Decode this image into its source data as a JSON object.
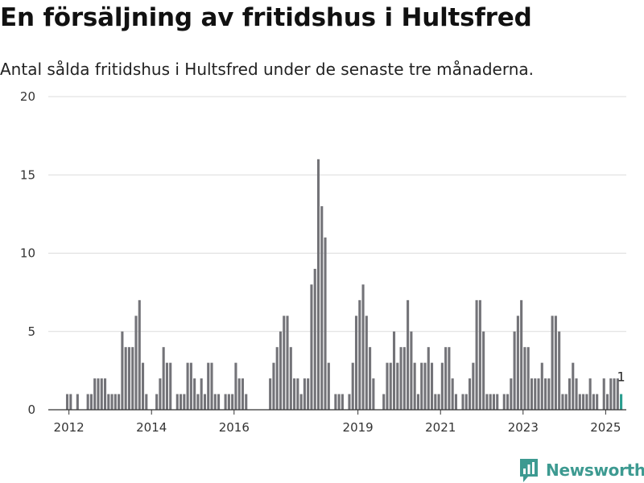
{
  "header": {
    "title": "En försäljning av fritidshus i Hultsfred",
    "subtitle": "Antal sålda fritidshus i Hultsfred under de senaste tre månaderna."
  },
  "brand": {
    "name": "Newsworthy",
    "logo_icon": "newsworthy-logo-icon",
    "color": "#3d9a91"
  },
  "chart_data": {
    "type": "bar",
    "title": "En försäljning av fritidshus i Hultsfred",
    "subtitle": "Antal sålda fritidshus i Hultsfred under de senaste tre månaderna.",
    "xlabel": "",
    "ylabel": "",
    "ylim": [
      0,
      20
    ],
    "y_ticks": [
      0,
      5,
      10,
      15,
      20
    ],
    "x_ticks": [
      "2012",
      "2014",
      "2016",
      "2019",
      "2021",
      "2023",
      "2025"
    ],
    "x_range": [
      "2011-07",
      "2025-07"
    ],
    "grid": true,
    "bar_color": "#737378",
    "highlight_color": "#2a9d8f",
    "highlight_label": "1",
    "start_month": "2011-12",
    "values": [
      1,
      1,
      0,
      1,
      0,
      0,
      1,
      1,
      2,
      2,
      2,
      2,
      1,
      1,
      1,
      1,
      5,
      4,
      4,
      4,
      6,
      7,
      3,
      1,
      0,
      0,
      1,
      2,
      4,
      3,
      3,
      0,
      1,
      1,
      1,
      3,
      3,
      2,
      1,
      2,
      1,
      3,
      3,
      1,
      1,
      0,
      1,
      1,
      1,
      3,
      2,
      2,
      1,
      0,
      0,
      0,
      0,
      0,
      0,
      2,
      3,
      4,
      5,
      6,
      6,
      4,
      2,
      2,
      1,
      2,
      2,
      8,
      9,
      16,
      13,
      11,
      3,
      0,
      1,
      1,
      1,
      0,
      1,
      3,
      6,
      7,
      8,
      6,
      4,
      2,
      0,
      0,
      1,
      3,
      3,
      5,
      3,
      4,
      4,
      7,
      5,
      3,
      1,
      3,
      3,
      4,
      3,
      1,
      1,
      3,
      4,
      4,
      2,
      1,
      0,
      1,
      1,
      2,
      3,
      7,
      7,
      5,
      1,
      1,
      1,
      1,
      0,
      1,
      1,
      2,
      5,
      6,
      7,
      4,
      4,
      2,
      2,
      2,
      3,
      2,
      2,
      6,
      6,
      5,
      1,
      1,
      2,
      3,
      2,
      1,
      1,
      1,
      2,
      1,
      1,
      0,
      2,
      1,
      2,
      2,
      2,
      1
    ]
  }
}
